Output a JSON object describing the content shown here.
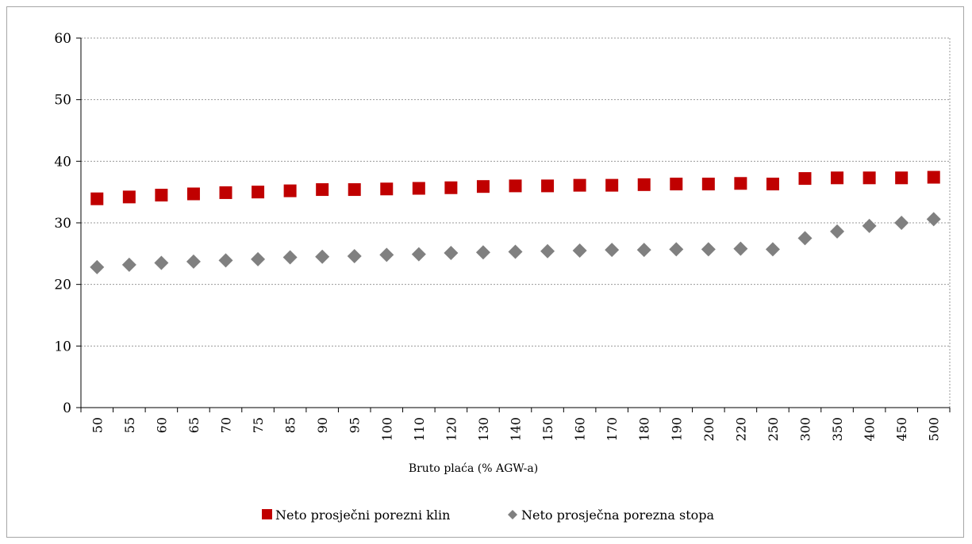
{
  "chart_data": {
    "type": "scatter",
    "title": "",
    "xlabel": "Bruto plaća (% AGW-a)",
    "ylabel": "",
    "ylim": [
      0,
      60
    ],
    "yticks": [
      0,
      10,
      20,
      30,
      40,
      50,
      60
    ],
    "grid": true,
    "legend_position": "bottom",
    "categories": [
      "50",
      "55",
      "60",
      "65",
      "70",
      "75",
      "85",
      "90",
      "95",
      "100",
      "110",
      "120",
      "130",
      "140",
      "150",
      "160",
      "170",
      "180",
      "190",
      "200",
      "220",
      "250",
      "300",
      "350",
      "400",
      "450",
      "500"
    ],
    "series": [
      {
        "name": "Neto prosječni porezni klin",
        "marker": "square",
        "color": "#c00000",
        "values": [
          33.9,
          34.2,
          34.5,
          34.7,
          34.9,
          35.0,
          35.2,
          35.4,
          35.4,
          35.5,
          35.6,
          35.7,
          35.9,
          36.0,
          36.0,
          36.1,
          36.1,
          36.2,
          36.3,
          36.3,
          36.4,
          36.3,
          37.2,
          37.3,
          37.3,
          37.3,
          37.4
        ]
      },
      {
        "name": "Neto prosječna porezna stopa",
        "marker": "diamond",
        "color": "#808080",
        "values": [
          22.8,
          23.2,
          23.5,
          23.7,
          23.9,
          24.1,
          24.4,
          24.5,
          24.6,
          24.8,
          24.9,
          25.1,
          25.2,
          25.3,
          25.4,
          25.5,
          25.6,
          25.6,
          25.7,
          25.7,
          25.8,
          25.7,
          27.5,
          28.6,
          29.5,
          30.0,
          30.6
        ]
      }
    ]
  }
}
